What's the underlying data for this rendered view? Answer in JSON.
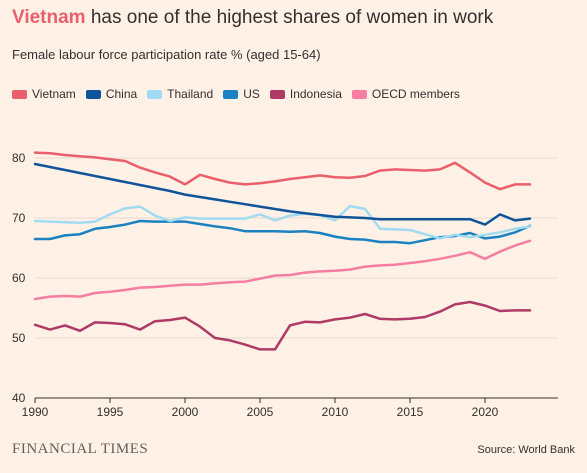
{
  "header": {
    "title_highlight": "Vietnam",
    "title_rest": " has one of the highest shares of women in work",
    "subtitle": "Female labour force participation rate % (aged 15-64)"
  },
  "footer": {
    "logo_text": "FINANCIAL TIMES",
    "source": "Source: World Bank"
  },
  "colors": {
    "background": "#fff1e5",
    "gridline": "#e6d9ce",
    "baseline": "#33302e"
  },
  "chart_data": {
    "type": "line",
    "title": "Vietnam has one of the highest shares of women in work",
    "subtitle": "Female labour force participation rate % (aged 15-64)",
    "xlabel": "",
    "ylabel": "",
    "xlim": [
      1990,
      2023
    ],
    "ylim": [
      40,
      80
    ],
    "xticks": [
      1990,
      1995,
      2000,
      2005,
      2010,
      2015,
      2020
    ],
    "yticks": [
      40,
      50,
      60,
      70,
      80
    ],
    "grid": true,
    "legend_position": "top-left",
    "x": [
      1990,
      1991,
      1992,
      1993,
      1994,
      1995,
      1996,
      1997,
      1998,
      1999,
      2000,
      2001,
      2002,
      2003,
      2004,
      2005,
      2006,
      2007,
      2008,
      2009,
      2010,
      2011,
      2012,
      2013,
      2014,
      2015,
      2016,
      2017,
      2018,
      2019,
      2020,
      2021,
      2022,
      2023
    ],
    "series": [
      {
        "name": "Vietnam",
        "color": "#eb5e6c",
        "values": [
          80.9,
          80.8,
          80.5,
          80.3,
          80.1,
          79.8,
          79.5,
          78.4,
          77.6,
          76.9,
          75.6,
          77.2,
          76.5,
          75.9,
          75.6,
          75.8,
          76.1,
          76.5,
          76.8,
          77.1,
          76.8,
          76.7,
          77.0,
          77.9,
          78.1,
          78.0,
          77.9,
          78.1,
          79.2,
          77.6,
          75.9,
          74.8,
          75.6,
          75.6
        ]
      },
      {
        "name": "China",
        "color": "#0f5499",
        "values": [
          79.0,
          78.5,
          78.0,
          77.5,
          77.0,
          76.5,
          76.0,
          75.5,
          75.0,
          74.5,
          73.9,
          73.5,
          73.1,
          72.7,
          72.3,
          71.9,
          71.5,
          71.1,
          70.8,
          70.5,
          70.2,
          70.1,
          70.0,
          69.8,
          69.8,
          69.8,
          69.8,
          69.8,
          69.8,
          69.8,
          68.9,
          70.6,
          69.6,
          69.9
        ]
      },
      {
        "name": "Thailand",
        "color": "#a1dbf1",
        "values": [
          69.5,
          69.4,
          69.3,
          69.2,
          69.4,
          70.6,
          71.6,
          71.9,
          70.4,
          69.5,
          70.1,
          69.9,
          69.9,
          69.9,
          69.9,
          70.6,
          69.6,
          70.4,
          70.7,
          70.5,
          69.6,
          72.0,
          71.5,
          68.2,
          68.1,
          68.0,
          67.3,
          66.6,
          67.2,
          66.8,
          67.2,
          67.6,
          68.2,
          68.6
        ]
      },
      {
        "name": "US",
        "color": "#1a81c2",
        "values": [
          66.5,
          66.5,
          67.1,
          67.3,
          68.2,
          68.5,
          68.9,
          69.5,
          69.4,
          69.4,
          69.4,
          69.0,
          68.6,
          68.3,
          67.8,
          67.8,
          67.8,
          67.7,
          67.8,
          67.5,
          66.9,
          66.5,
          66.4,
          66.0,
          66.0,
          65.8,
          66.3,
          66.8,
          67.0,
          67.5,
          66.6,
          66.9,
          67.6,
          68.7
        ]
      },
      {
        "name": "Indonesia",
        "color": "#b03a66",
        "values": [
          52.2,
          51.4,
          52.1,
          51.2,
          52.6,
          52.5,
          52.3,
          51.4,
          52.8,
          53.0,
          53.4,
          51.9,
          50.0,
          49.6,
          48.9,
          48.1,
          48.1,
          52.1,
          52.7,
          52.6,
          53.1,
          53.4,
          54.0,
          53.2,
          53.1,
          53.2,
          53.5,
          54.4,
          55.6,
          56.0,
          55.4,
          54.5,
          54.6,
          54.6
        ]
      },
      {
        "name": "OECD members",
        "color": "#f57ea1",
        "values": [
          56.5,
          56.9,
          57.0,
          56.9,
          57.5,
          57.7,
          58.0,
          58.4,
          58.5,
          58.7,
          58.9,
          58.9,
          59.1,
          59.3,
          59.4,
          59.9,
          60.4,
          60.5,
          60.9,
          61.1,
          61.2,
          61.4,
          61.9,
          62.1,
          62.2,
          62.5,
          62.8,
          63.2,
          63.7,
          64.3,
          63.2,
          64.4,
          65.4,
          66.2
        ]
      }
    ]
  }
}
